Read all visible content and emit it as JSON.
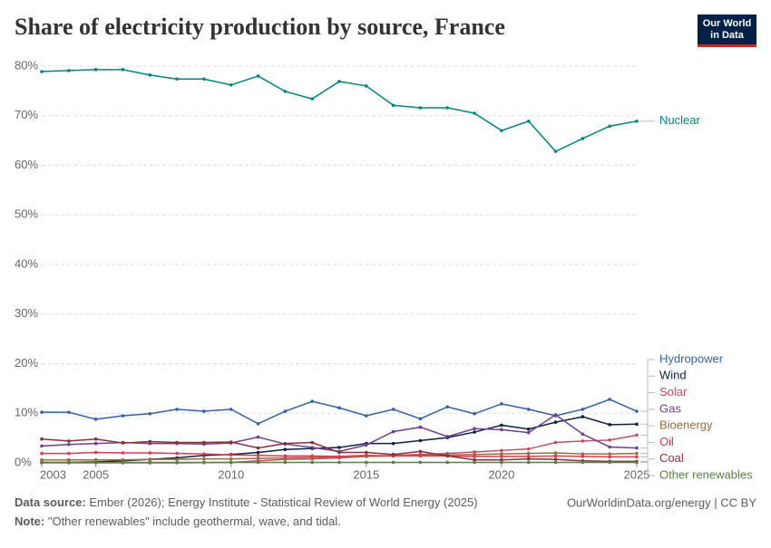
{
  "chart_data": {
    "type": "line",
    "title": "Share of electricity production by source, France",
    "logo": "Our World in Data",
    "source_label": "Data source:",
    "source": "Ember (2026); Energy Institute - Statistical Review of World Energy (2025)",
    "url": "OurWorldinData.org/energy | CC BY",
    "note_label": "Note:",
    "note": "\"Other renewables\" include geothermal, wave, and tidal.",
    "x": [
      2003,
      2004,
      2005,
      2006,
      2007,
      2008,
      2009,
      2010,
      2011,
      2012,
      2013,
      2014,
      2015,
      2016,
      2017,
      2018,
      2019,
      2020,
      2021,
      2022,
      2023,
      2024,
      2025
    ],
    "xlim": [
      2003,
      2025
    ],
    "xticks": [
      2003,
      2005,
      2010,
      2015,
      2020,
      2025
    ],
    "ylim": [
      0,
      80
    ],
    "yticks": [
      {
        "value": 0,
        "label": "0%"
      },
      {
        "value": 10,
        "label": "10%"
      },
      {
        "value": 20,
        "label": "20%"
      },
      {
        "value": 30,
        "label": "30%"
      },
      {
        "value": 40,
        "label": "40%"
      },
      {
        "value": 50,
        "label": "50%"
      },
      {
        "value": 60,
        "label": "60%"
      },
      {
        "value": 70,
        "label": "70%"
      },
      {
        "value": 80,
        "label": "80%"
      }
    ],
    "grid": true,
    "series": [
      {
        "name": "Nuclear",
        "color": "#00847e",
        "values": [
          78.9,
          79.1,
          79.3,
          79.3,
          78.2,
          77.4,
          77.4,
          76.2,
          78.0,
          74.9,
          73.4,
          76.9,
          76.0,
          72.1,
          71.6,
          71.6,
          70.5,
          67.0,
          68.9,
          62.8,
          65.4,
          67.9,
          68.9
        ]
      },
      {
        "name": "Hydropower",
        "color": "#3360a9",
        "values": [
          10.2,
          10.2,
          8.8,
          9.5,
          9.9,
          10.8,
          10.4,
          10.8,
          7.9,
          10.4,
          12.4,
          11.1,
          9.5,
          10.8,
          8.9,
          11.3,
          9.9,
          11.9,
          10.8,
          9.5,
          10.8,
          12.8,
          10.4
        ]
      },
      {
        "name": "Wind",
        "color": "#0b2140",
        "values": [
          0.1,
          0.1,
          0.2,
          0.4,
          0.7,
          1.0,
          1.5,
          1.7,
          2.1,
          2.7,
          2.9,
          3.1,
          3.9,
          3.9,
          4.5,
          5.1,
          6.2,
          7.6,
          6.8,
          8.2,
          9.3,
          7.7,
          7.8
        ]
      },
      {
        "name": "Solar",
        "color": "#c15065",
        "values": [
          0,
          0,
          0,
          0,
          0,
          0,
          0.04,
          0.1,
          0.4,
          0.7,
          0.8,
          1.0,
          1.3,
          1.5,
          1.7,
          1.9,
          2.2,
          2.5,
          2.8,
          4.1,
          4.4,
          4.6,
          5.6
        ]
      },
      {
        "name": "Gas",
        "color": "#6d3e91",
        "values": [
          3.4,
          3.7,
          3.9,
          4.1,
          3.9,
          3.9,
          3.8,
          4.0,
          5.2,
          3.8,
          3.1,
          2.3,
          3.6,
          6.3,
          7.2,
          5.3,
          6.9,
          6.7,
          6.1,
          9.7,
          5.8,
          3.2,
          3.0
        ]
      },
      {
        "name": "Bioenergy",
        "color": "#996d39",
        "values": [
          0.6,
          0.6,
          0.6,
          0.6,
          0.7,
          0.7,
          0.8,
          0.8,
          0.9,
          1.0,
          1.1,
          1.2,
          1.3,
          1.4,
          1.5,
          1.6,
          1.7,
          1.8,
          1.9,
          2.0,
          1.8,
          1.8,
          1.9
        ]
      },
      {
        "name": "Oil",
        "color": "#d73c50",
        "values": [
          1.9,
          1.9,
          2.1,
          2.0,
          2.0,
          1.9,
          1.8,
          1.6,
          1.5,
          1.4,
          1.4,
          1.3,
          1.5,
          1.4,
          1.4,
          1.4,
          1.3,
          1.3,
          1.3,
          1.4,
          1.3,
          1.2,
          1.2
        ]
      },
      {
        "name": "Coal",
        "color": "#883039",
        "values": [
          4.8,
          4.4,
          4.8,
          4.0,
          4.3,
          4.1,
          4.1,
          4.2,
          3.0,
          3.9,
          4.1,
          2.1,
          2.1,
          1.7,
          2.3,
          1.4,
          0.6,
          0.6,
          0.8,
          0.7,
          0.4,
          0.3,
          0.3
        ]
      },
      {
        "name": "Other renewables",
        "color": "#578145",
        "values": [
          0.1,
          0.1,
          0.1,
          0.1,
          0.1,
          0.1,
          0.1,
          0.1,
          0.1,
          0.1,
          0.1,
          0.1,
          0.1,
          0.1,
          0.1,
          0.1,
          0.1,
          0.1,
          0.1,
          0.1,
          0.1,
          0.1,
          0.1
        ]
      }
    ]
  }
}
